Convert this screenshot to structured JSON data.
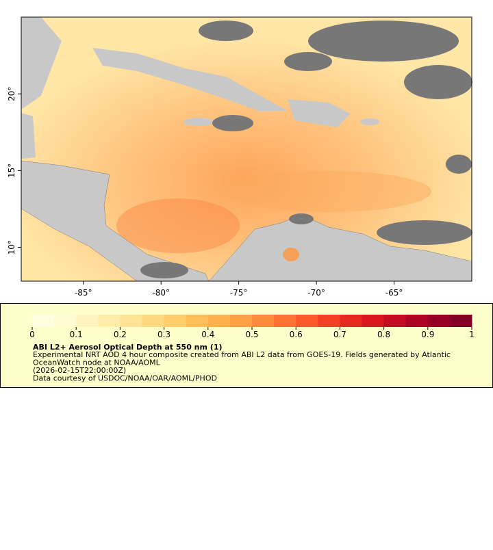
{
  "map": {
    "xlim": [
      -89,
      -60
    ],
    "ylim": [
      7.8,
      25
    ],
    "xticks": [
      {
        "value": -85,
        "label": "-85°"
      },
      {
        "value": -80,
        "label": "-80°"
      },
      {
        "value": -75,
        "label": "-75°"
      },
      {
        "value": -70,
        "label": "-70°"
      },
      {
        "value": -65,
        "label": "-65°"
      }
    ],
    "yticks": [
      {
        "value": 10,
        "label": "10°"
      },
      {
        "value": 15,
        "label": "15°"
      },
      {
        "value": 20,
        "label": "20°"
      }
    ]
  },
  "colorbar": {
    "range": [
      0,
      1
    ],
    "ticks": [
      0,
      0.1,
      0.2,
      0.3,
      0.4,
      0.5,
      0.6,
      0.7,
      0.8,
      0.9,
      1
    ],
    "colors": [
      "#fffee0",
      "#fffbd2",
      "#fff4bf",
      "#ffedaa",
      "#fee496",
      "#fed980",
      "#fecd6c",
      "#febf5a",
      "#feb04c",
      "#fd9f43",
      "#fd8d3c",
      "#fc7334",
      "#fc5a2d",
      "#f53f26",
      "#e8271f",
      "#d9161e",
      "#c40c22",
      "#ad0426",
      "#950026",
      "#800026"
    ],
    "title": "ABI L2+ Aerosol Optical Depth at 550 nm (1)",
    "lines": [
      "Experimental NRT AOD 4 hour composite created from ABI L2 data from GOES-19. Fields generated by Atlantic",
      "OceanWatch node at NOAA/AOML",
      "(2026-02-15T22:00:00Z)",
      "Data courtesy of USDOC/NOAA/OAR/AOML/PHOD"
    ]
  }
}
